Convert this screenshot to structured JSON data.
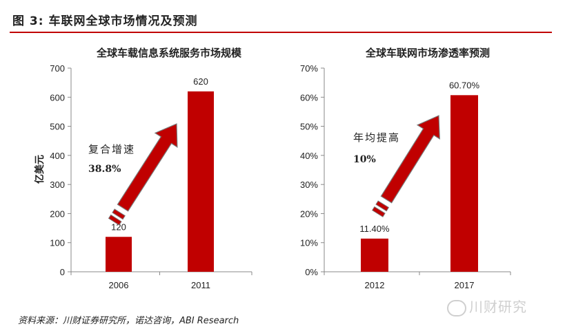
{
  "figure": {
    "title": "图 3:  车联网全球市场情况及预测",
    "source": "资料来源：川财证券研究所，诺达咨询，ABI Research",
    "watermark": "川财研究",
    "accent_color": "#c00000"
  },
  "chart_data": [
    {
      "type": "bar",
      "title": "全球车载信息系统服务市场规模",
      "ylabel": "亿美元",
      "xlabel": "",
      "categories": [
        "2006",
        "2011"
      ],
      "values": [
        120,
        620
      ],
      "value_labels": [
        "120",
        "620"
      ],
      "ylim": [
        0,
        700
      ],
      "yticks": [
        0,
        100,
        200,
        300,
        400,
        500,
        600,
        700
      ],
      "ytick_labels": [
        "0",
        "100",
        "200",
        "300",
        "400",
        "500",
        "600",
        "700"
      ],
      "bar_color": "#c00000",
      "annotation": {
        "line1": "复合增速",
        "line2": "38.8%"
      },
      "grid": false
    },
    {
      "type": "bar",
      "title": "全球车联网市场渗透率预测",
      "ylabel": "",
      "xlabel": "",
      "categories": [
        "2012",
        "2017"
      ],
      "values": [
        11.4,
        60.7
      ],
      "value_labels": [
        "11.40%",
        "60.70%"
      ],
      "ylim": [
        0,
        70
      ],
      "yticks": [
        0,
        10,
        20,
        30,
        40,
        50,
        60,
        70
      ],
      "ytick_labels": [
        "0%",
        "10%",
        "20%",
        "30%",
        "40%",
        "50%",
        "60%",
        "70%"
      ],
      "bar_color": "#c00000",
      "annotation": {
        "line1": "年均提高",
        "line2": "10%"
      },
      "grid": false
    }
  ]
}
